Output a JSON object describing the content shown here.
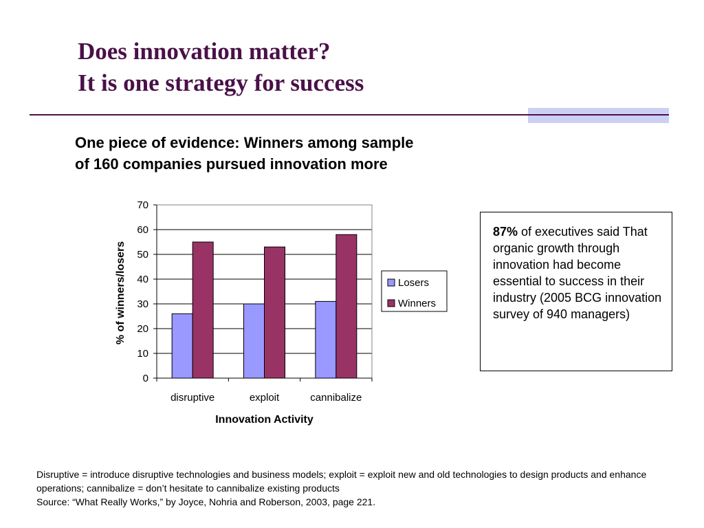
{
  "slide": {
    "title_line1": "Does innovation matter?",
    "title_line2": "It is one strategy for success",
    "subtitle_line1": "One piece of evidence: Winners among sample",
    "subtitle_line2": "of 160 companies pursued innovation more"
  },
  "note_box": {
    "highlight": "87%",
    "text_after_highlight": " of executives said That organic growth through innovation had become essential to success in their industry (2005 BCG innovation survey of 940 managers)"
  },
  "footnote": {
    "definitions": "Disruptive = introduce disruptive technologies and business models; exploit = exploit new and old technologies to design products and enhance operations; cannibalize = don’t hesitate to cannibalize existing products",
    "source": "Source: “What Really Works,” by Joyce, Nohria and Roberson, 2003, page 221."
  },
  "colors": {
    "title": "#4a1048",
    "losers": "#9999ff",
    "winners": "#993366",
    "accent_bar": "#ccd0f5"
  },
  "chart_data": {
    "type": "bar",
    "categories": [
      "disruptive",
      "exploit",
      "cannibalize"
    ],
    "series": [
      {
        "name": "Losers",
        "values": [
          26,
          30,
          31
        ]
      },
      {
        "name": "Winners",
        "values": [
          55,
          53,
          58
        ]
      }
    ],
    "xlabel": "Innovation Activity",
    "ylabel": "% of winners/losers",
    "ylim": [
      0,
      70
    ],
    "yticks": [
      0,
      10,
      20,
      30,
      40,
      50,
      60,
      70
    ],
    "grid": true,
    "legend": "right"
  }
}
